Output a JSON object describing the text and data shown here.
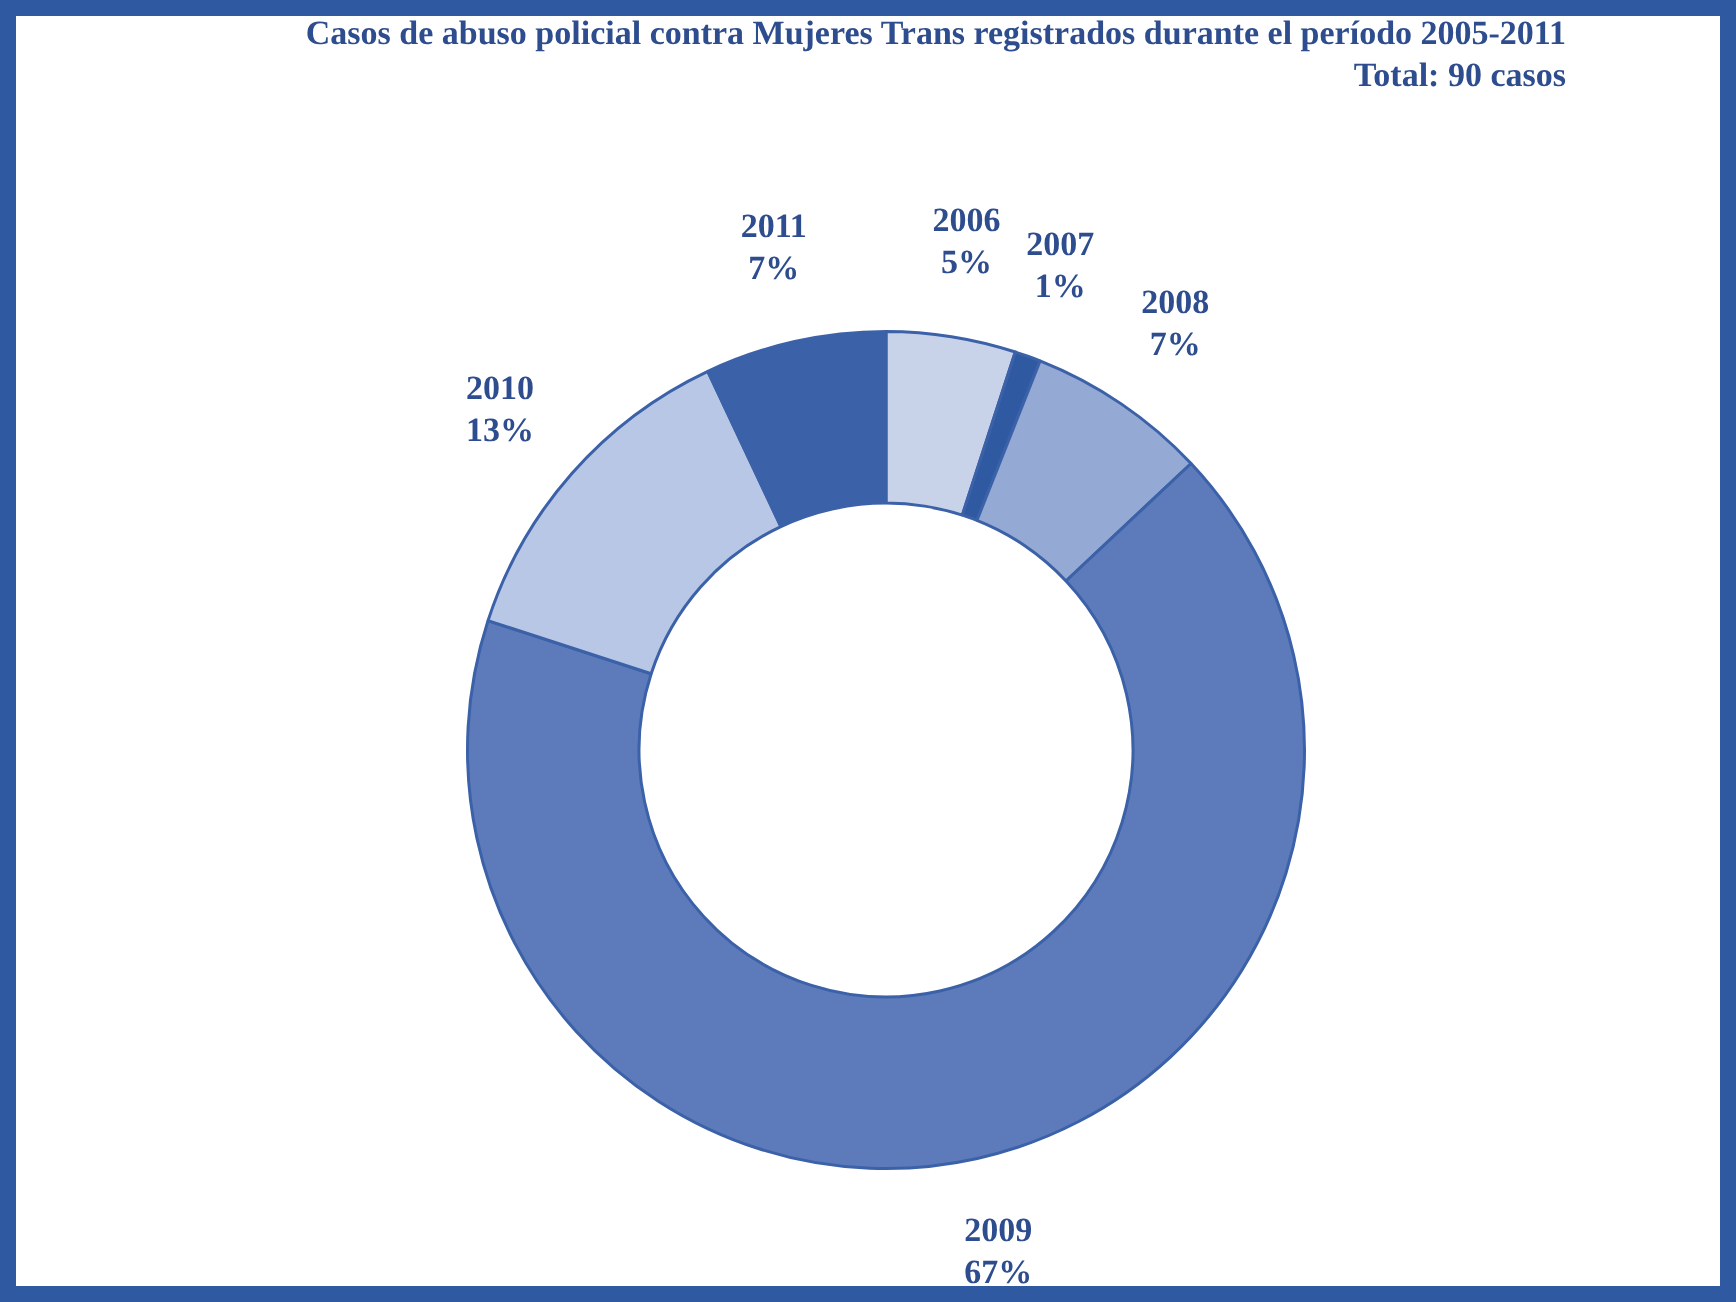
{
  "chart_data": {
    "type": "donut",
    "title": "Casos de abuso policial contra Mujeres Trans registrados durante el período 2005-2011",
    "subtitle": "Total: 90 casos",
    "categories": [
      "2006",
      "2007",
      "2008",
      "2009",
      "2010",
      "2011"
    ],
    "values": [
      5,
      1,
      7,
      67,
      13,
      7
    ],
    "value_labels": [
      "5%",
      "1%",
      "7%",
      "67%",
      "13%",
      "7%"
    ],
    "colors": [
      "#c8d3ea",
      "#2f5aa2",
      "#94a9d3",
      "#5d7bbb",
      "#b8c7e5",
      "#3b61a8"
    ],
    "legend": false
  }
}
